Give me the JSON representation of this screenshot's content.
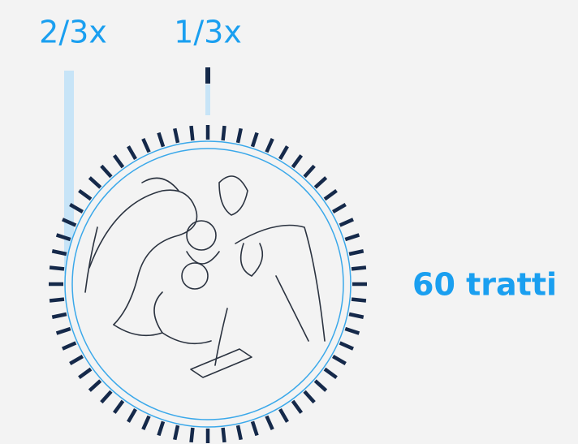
{
  "labels": {
    "two_thirds": "2/3x",
    "one_third": "1/3x",
    "ticks": "60 tratti"
  }
}
